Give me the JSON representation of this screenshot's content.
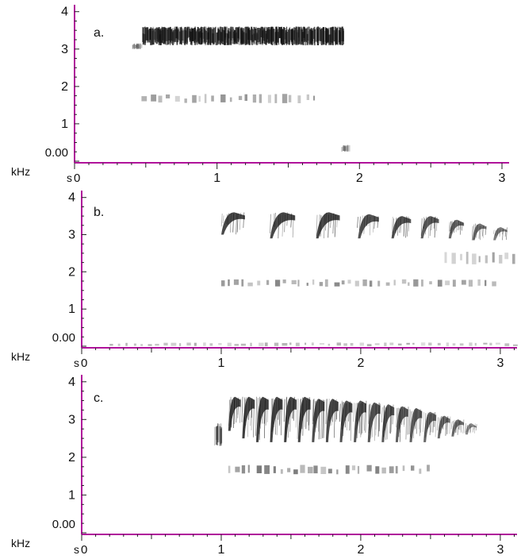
{
  "chart_data": [
    {
      "type": "heatmap",
      "panel_label": "a.",
      "y_unit": "kHz",
      "x_unit": "s",
      "y_zero_label": "0.00",
      "x_zero_label": "0",
      "y_ticks": [
        "1",
        "2",
        "3",
        "4"
      ],
      "x_ticks": [
        "1",
        "2",
        "3"
      ],
      "xlim": [
        0,
        3.05
      ],
      "ylim": [
        0,
        4.1
      ],
      "colors": {
        "axis": "#b0139b",
        "zero_label": "#1f2ad8",
        "ink": "#111111"
      },
      "bands": [
        {
          "t_start": 0.47,
          "t_end": 1.88,
          "f_low": 3.1,
          "f_high": 3.6,
          "intensity": 0.85,
          "kind": "dense"
        },
        {
          "t_start": 0.4,
          "t_end": 0.46,
          "f_low": 3.0,
          "f_high": 3.15,
          "intensity": 0.4,
          "kind": "dense"
        },
        {
          "t_start": 0.47,
          "t_end": 1.72,
          "f_low": 1.55,
          "f_high": 1.8,
          "intensity": 0.45,
          "kind": "dashed"
        },
        {
          "t_start": 1.87,
          "t_end": 1.92,
          "f_low": 0.25,
          "f_high": 0.45,
          "intensity": 0.3,
          "kind": "dense"
        }
      ]
    },
    {
      "type": "heatmap",
      "panel_label": "b.",
      "y_unit": "kHz",
      "x_unit": "s",
      "y_zero_label": "0.00",
      "x_zero_label": "0",
      "y_ticks": [
        "1",
        "2",
        "3",
        "4"
      ],
      "x_ticks": [
        "1",
        "2",
        "3"
      ],
      "xlim": [
        0,
        3.12
      ],
      "ylim": [
        0,
        4.1
      ],
      "colors": {
        "axis": "#b0139b",
        "zero_label": "#1f2ad8",
        "ink": "#111111"
      },
      "syllables": [
        {
          "t": 1.0,
          "f_low": 3.0,
          "f_high": 3.6,
          "width": 0.17,
          "intensity": 0.9
        },
        {
          "t": 1.35,
          "f_low": 2.9,
          "f_high": 3.6,
          "width": 0.18,
          "intensity": 0.9
        },
        {
          "t": 1.68,
          "f_low": 2.9,
          "f_high": 3.6,
          "width": 0.17,
          "intensity": 0.9
        },
        {
          "t": 1.98,
          "f_low": 2.9,
          "f_high": 3.55,
          "width": 0.15,
          "intensity": 0.85
        },
        {
          "t": 2.22,
          "f_low": 2.9,
          "f_high": 3.5,
          "width": 0.14,
          "intensity": 0.85
        },
        {
          "t": 2.43,
          "f_low": 2.9,
          "f_high": 3.5,
          "width": 0.13,
          "intensity": 0.8
        },
        {
          "t": 2.63,
          "f_low": 2.9,
          "f_high": 3.4,
          "width": 0.11,
          "intensity": 0.75
        },
        {
          "t": 2.8,
          "f_low": 2.85,
          "f_high": 3.3,
          "width": 0.1,
          "intensity": 0.7
        },
        {
          "t": 2.95,
          "f_low": 2.85,
          "f_high": 3.2,
          "width": 0.1,
          "intensity": 0.65
        }
      ],
      "bands": [
        {
          "t_start": 1.0,
          "t_end": 2.95,
          "f_low": 1.6,
          "f_high": 1.8,
          "intensity": 0.5,
          "kind": "dashed"
        },
        {
          "t_start": 2.6,
          "t_end": 3.12,
          "f_low": 2.2,
          "f_high": 2.55,
          "intensity": 0.4,
          "kind": "dashed"
        },
        {
          "t_start": 0.2,
          "t_end": 3.12,
          "f_low": 0.0,
          "f_high": 0.1,
          "intensity": 0.35,
          "kind": "dashed"
        }
      ]
    },
    {
      "type": "heatmap",
      "panel_label": "c.",
      "y_unit": "kHz",
      "x_unit": "s",
      "y_zero_label": "0.00",
      "x_zero_label": "0",
      "y_ticks": [
        "1",
        "2",
        "3",
        "4"
      ],
      "x_ticks": [
        "1",
        "2",
        "3"
      ],
      "xlim": [
        0,
        3.12
      ],
      "ylim": [
        0,
        4.1
      ],
      "colors": {
        "axis": "#b0139b",
        "zero_label": "#1f2ad8",
        "ink": "#111111"
      },
      "syllables": [
        {
          "t": 1.05,
          "f_low": 2.7,
          "f_high": 3.6,
          "width": 0.09,
          "intensity": 0.9
        },
        {
          "t": 1.15,
          "f_low": 2.5,
          "f_high": 3.6,
          "width": 0.09,
          "intensity": 0.9
        },
        {
          "t": 1.25,
          "f_low": 2.4,
          "f_high": 3.6,
          "width": 0.09,
          "intensity": 0.9
        },
        {
          "t": 1.35,
          "f_low": 2.4,
          "f_high": 3.6,
          "width": 0.09,
          "intensity": 0.9
        },
        {
          "t": 1.45,
          "f_low": 2.4,
          "f_high": 3.6,
          "width": 0.09,
          "intensity": 0.9
        },
        {
          "t": 1.55,
          "f_low": 2.4,
          "f_high": 3.6,
          "width": 0.09,
          "intensity": 0.9
        },
        {
          "t": 1.65,
          "f_low": 2.4,
          "f_high": 3.55,
          "width": 0.09,
          "intensity": 0.88
        },
        {
          "t": 1.75,
          "f_low": 2.4,
          "f_high": 3.55,
          "width": 0.09,
          "intensity": 0.88
        },
        {
          "t": 1.85,
          "f_low": 2.4,
          "f_high": 3.5,
          "width": 0.09,
          "intensity": 0.86
        },
        {
          "t": 1.95,
          "f_low": 2.4,
          "f_high": 3.5,
          "width": 0.09,
          "intensity": 0.85
        },
        {
          "t": 2.05,
          "f_low": 2.4,
          "f_high": 3.45,
          "width": 0.09,
          "intensity": 0.84
        },
        {
          "t": 2.15,
          "f_low": 2.4,
          "f_high": 3.4,
          "width": 0.09,
          "intensity": 0.82
        },
        {
          "t": 2.25,
          "f_low": 2.4,
          "f_high": 3.35,
          "width": 0.09,
          "intensity": 0.8
        },
        {
          "t": 2.35,
          "f_low": 2.4,
          "f_high": 3.3,
          "width": 0.09,
          "intensity": 0.78
        },
        {
          "t": 2.45,
          "f_low": 2.4,
          "f_high": 3.2,
          "width": 0.09,
          "intensity": 0.75
        },
        {
          "t": 2.55,
          "f_low": 2.5,
          "f_high": 3.1,
          "width": 0.09,
          "intensity": 0.72
        },
        {
          "t": 2.65,
          "f_low": 2.55,
          "f_high": 3.0,
          "width": 0.09,
          "intensity": 0.68
        },
        {
          "t": 2.75,
          "f_low": 2.6,
          "f_high": 2.9,
          "width": 0.08,
          "intensity": 0.6
        }
      ],
      "bands": [
        {
          "t_start": 1.05,
          "t_end": 2.5,
          "f_low": 1.55,
          "f_high": 1.8,
          "intensity": 0.55,
          "kind": "dashed"
        },
        {
          "t_start": 0.95,
          "t_end": 1.0,
          "f_low": 2.3,
          "f_high": 2.9,
          "intensity": 0.5,
          "kind": "dense"
        }
      ]
    }
  ]
}
